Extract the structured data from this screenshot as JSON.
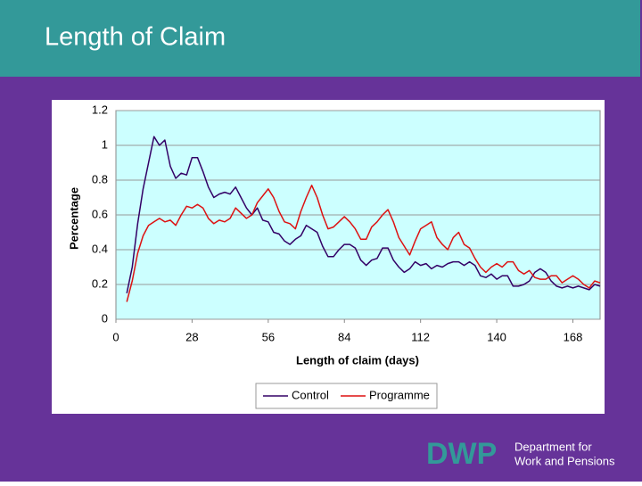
{
  "slide": {
    "title": "Length of Claim",
    "logo": "DWP",
    "logo_text": [
      "Department for",
      "Work and Pensions"
    ]
  },
  "chart_data": {
    "type": "line",
    "x_label": "Length of claim (days)",
    "y_label": "Percentage",
    "x": [
      4,
      6,
      8,
      10,
      12,
      14,
      16,
      18,
      20,
      22,
      24,
      26,
      28,
      30,
      32,
      34,
      36,
      38,
      40,
      42,
      44,
      46,
      48,
      50,
      52,
      54,
      56,
      58,
      60,
      62,
      64,
      66,
      68,
      70,
      72,
      74,
      76,
      78,
      80,
      82,
      84,
      86,
      88,
      90,
      92,
      94,
      96,
      98,
      100,
      102,
      104,
      106,
      108,
      110,
      112,
      114,
      116,
      118,
      120,
      122,
      124,
      126,
      128,
      130,
      132,
      134,
      136,
      138,
      140,
      142,
      144,
      146,
      148,
      150,
      152,
      154,
      156,
      158,
      160,
      162,
      164,
      166,
      168,
      170,
      172,
      174,
      176,
      178
    ],
    "series": [
      {
        "name": "Control",
        "color": "#330066",
        "values": [
          0.15,
          0.3,
          0.55,
          0.75,
          0.9,
          1.05,
          1.0,
          1.03,
          0.88,
          0.81,
          0.84,
          0.83,
          0.93,
          0.93,
          0.85,
          0.76,
          0.7,
          0.72,
          0.73,
          0.72,
          0.76,
          0.7,
          0.64,
          0.6,
          0.64,
          0.57,
          0.56,
          0.5,
          0.49,
          0.45,
          0.43,
          0.46,
          0.48,
          0.54,
          0.52,
          0.5,
          0.42,
          0.36,
          0.36,
          0.4,
          0.43,
          0.43,
          0.41,
          0.34,
          0.31,
          0.34,
          0.35,
          0.41,
          0.41,
          0.34,
          0.3,
          0.27,
          0.29,
          0.33,
          0.31,
          0.32,
          0.29,
          0.31,
          0.3,
          0.32,
          0.33,
          0.33,
          0.31,
          0.33,
          0.31,
          0.25,
          0.24,
          0.26,
          0.23,
          0.25,
          0.25,
          0.19,
          0.19,
          0.2,
          0.22,
          0.27,
          0.29,
          0.27,
          0.22,
          0.19,
          0.18,
          0.19,
          0.18,
          0.19,
          0.18,
          0.17,
          0.2,
          0.19
        ]
      },
      {
        "name": "Programme",
        "color": "#dd1111",
        "values": [
          0.1,
          0.22,
          0.38,
          0.48,
          0.54,
          0.56,
          0.58,
          0.56,
          0.57,
          0.54,
          0.6,
          0.65,
          0.64,
          0.66,
          0.64,
          0.58,
          0.55,
          0.57,
          0.56,
          0.58,
          0.64,
          0.61,
          0.58,
          0.6,
          0.67,
          0.71,
          0.75,
          0.7,
          0.62,
          0.56,
          0.55,
          0.52,
          0.62,
          0.7,
          0.77,
          0.7,
          0.6,
          0.52,
          0.53,
          0.56,
          0.59,
          0.56,
          0.52,
          0.46,
          0.46,
          0.53,
          0.56,
          0.6,
          0.63,
          0.56,
          0.47,
          0.42,
          0.37,
          0.45,
          0.52,
          0.54,
          0.56,
          0.47,
          0.43,
          0.4,
          0.47,
          0.5,
          0.43,
          0.41,
          0.35,
          0.3,
          0.27,
          0.3,
          0.32,
          0.3,
          0.33,
          0.33,
          0.28,
          0.26,
          0.28,
          0.24,
          0.23,
          0.23,
          0.25,
          0.25,
          0.21,
          0.23,
          0.25,
          0.23,
          0.2,
          0.18,
          0.22,
          0.21
        ]
      }
    ],
    "xlim": [
      0,
      178
    ],
    "xticks": [
      0,
      28,
      56,
      84,
      112,
      140,
      168
    ],
    "ylim": [
      0,
      1.2
    ],
    "yticks": [
      0,
      0.2,
      0.4,
      0.6,
      0.8,
      1,
      1.2
    ],
    "grid": true,
    "legend": "bottom"
  }
}
